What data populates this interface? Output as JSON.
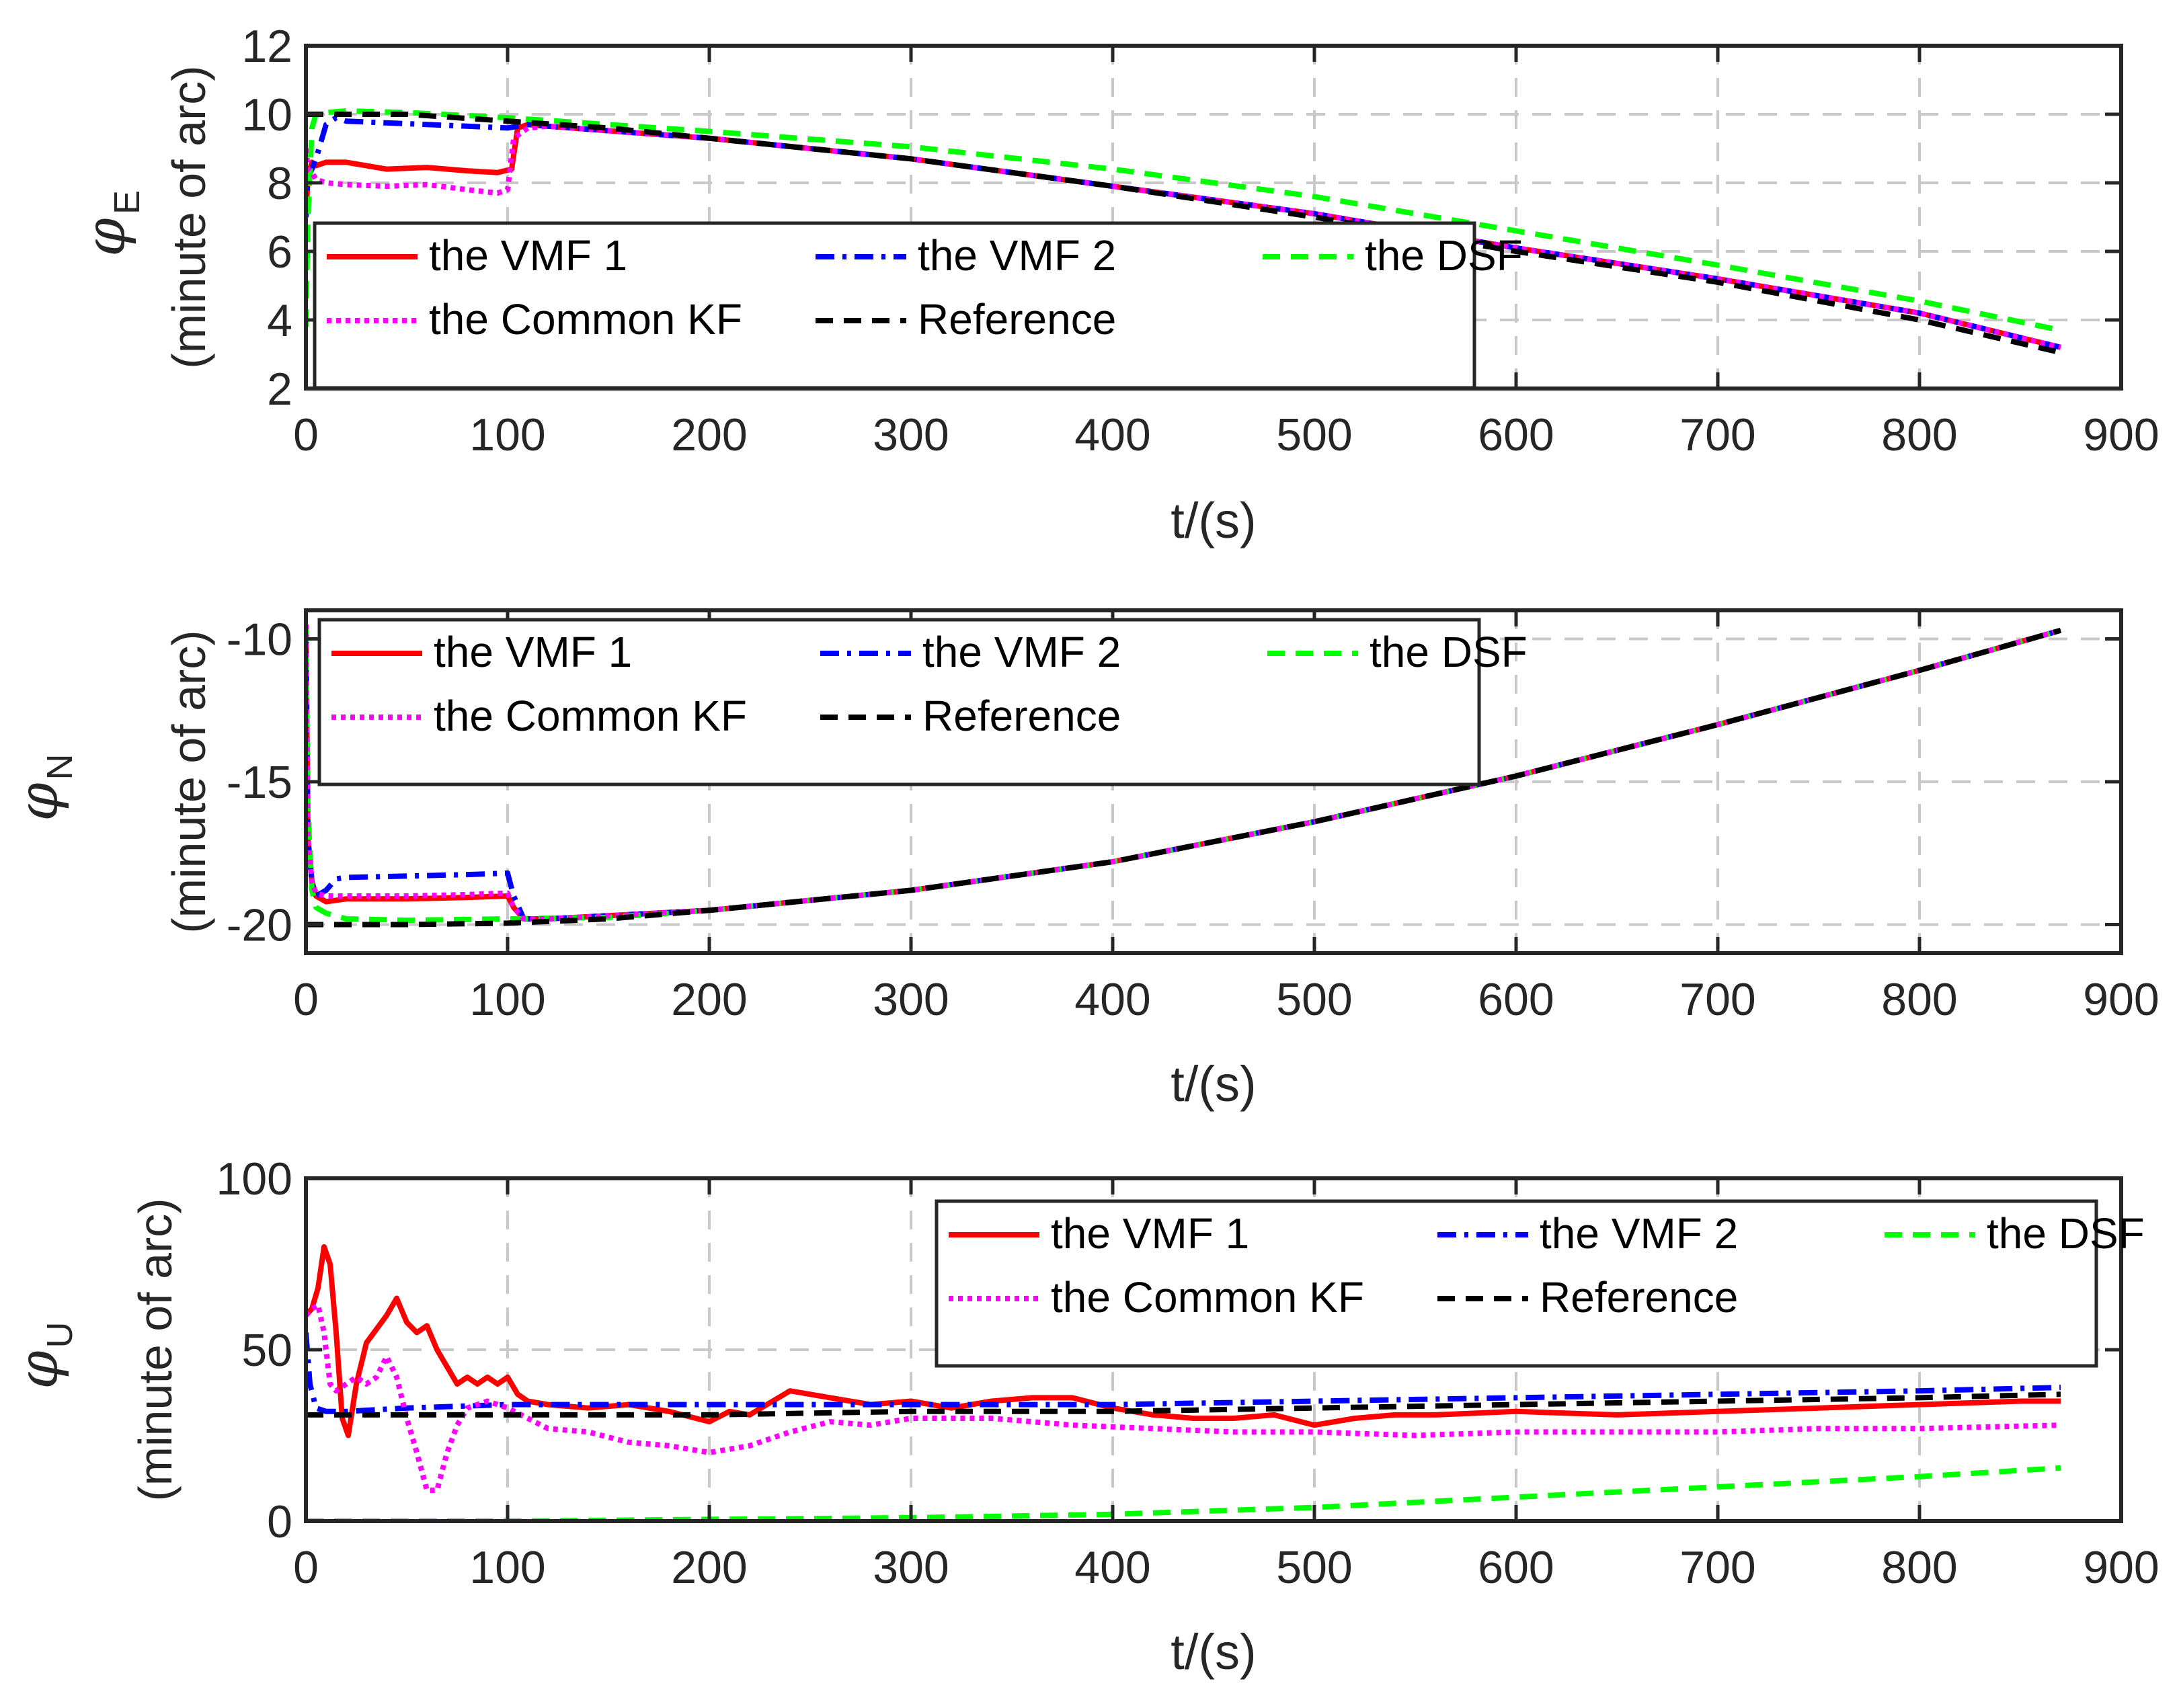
{
  "chart_data": [
    {
      "type": "line",
      "id": "E",
      "ylabel_symbol": "φ",
      "ylabel_subscript": "E",
      "ylabel_text": "(minute of arc)",
      "xlabel": "t/(s)",
      "xlim": [
        0,
        900
      ],
      "ylim": [
        2,
        12
      ],
      "xticks": [
        0,
        100,
        200,
        300,
        400,
        500,
        600,
        700,
        800,
        900
      ],
      "yticks": [
        2,
        4,
        6,
        8,
        10,
        12
      ],
      "ytick_labels": [
        "2",
        "4",
        "6",
        "8",
        "10",
        "12"
      ],
      "legend_location": "upper-left",
      "series": [
        {
          "name": "the VMF 1",
          "color": "#ff0000",
          "style": "solid",
          "x": [
            0,
            1,
            3,
            5,
            10,
            20,
            40,
            60,
            80,
            95,
            102,
            105,
            110,
            120,
            200,
            300,
            400,
            500,
            600,
            700,
            800,
            870
          ],
          "y": [
            7,
            8.2,
            8.6,
            8.5,
            8.6,
            8.6,
            8.4,
            8.45,
            8.35,
            8.3,
            8.4,
            9.6,
            9.7,
            9.65,
            9.3,
            8.7,
            7.9,
            7.1,
            6.1,
            5.2,
            4.2,
            3.2
          ]
        },
        {
          "name": "the VMF 2",
          "color": "#0000ff",
          "style": "dashdot",
          "x": [
            0,
            1,
            3,
            5,
            10,
            15,
            20,
            40,
            60,
            80,
            100,
            105,
            110,
            120,
            200,
            300,
            400,
            500,
            600,
            700,
            800,
            870
          ],
          "y": [
            7,
            8.2,
            8.4,
            8.7,
            9.7,
            9.9,
            9.8,
            9.75,
            9.7,
            9.65,
            9.6,
            9.65,
            9.7,
            9.65,
            9.3,
            8.7,
            7.9,
            7.1,
            6.1,
            5.2,
            4.2,
            3.2
          ]
        },
        {
          "name": "the DSF",
          "color": "#00ff00",
          "style": "dashed",
          "x": [
            0,
            1,
            3,
            5,
            10,
            20,
            50,
            100,
            150,
            200,
            300,
            400,
            500,
            600,
            700,
            800,
            870
          ],
          "y": [
            3.8,
            7,
            9.6,
            10,
            10.05,
            10.1,
            10.05,
            9.9,
            9.7,
            9.5,
            9.05,
            8.4,
            7.6,
            6.6,
            5.6,
            4.55,
            3.7
          ]
        },
        {
          "name": "the Common KF",
          "color": "#ff00ff",
          "style": "dotted",
          "x": [
            0,
            1,
            3,
            5,
            10,
            20,
            40,
            60,
            80,
            95,
            100,
            103,
            110,
            120,
            200,
            300,
            400,
            500,
            600,
            700,
            800,
            870
          ],
          "y": [
            9,
            8.4,
            8.3,
            8.1,
            8,
            7.95,
            7.9,
            7.95,
            7.8,
            7.7,
            7.8,
            9.3,
            9.6,
            9.65,
            9.3,
            8.7,
            7.9,
            7.1,
            6.1,
            5.2,
            4.2,
            3.2
          ]
        },
        {
          "name": "Reference",
          "color": "#000000",
          "style": "dashed",
          "x": [
            0,
            50,
            100,
            150,
            200,
            300,
            400,
            500,
            600,
            700,
            800,
            870
          ],
          "y": [
            10,
            10,
            9.8,
            9.6,
            9.3,
            8.7,
            7.9,
            7.0,
            6.0,
            5.1,
            4.0,
            3.05
          ]
        }
      ]
    },
    {
      "type": "line",
      "id": "N",
      "ylabel_symbol": "φ",
      "ylabel_subscript": "N",
      "ylabel_text": "(minute of arc)",
      "xlabel": "t/(s)",
      "xlim": [
        0,
        900
      ],
      "ylim": [
        -21,
        -9
      ],
      "xticks": [
        0,
        100,
        200,
        300,
        400,
        500,
        600,
        700,
        800,
        900
      ],
      "yticks": [
        -20,
        -15,
        -10
      ],
      "ytick_labels": [
        "-20",
        "-15",
        "-10"
      ],
      "legend_location": "upper-left",
      "series": [
        {
          "name": "the VMF 1",
          "color": "#ff0000",
          "style": "solid",
          "x": [
            0,
            1,
            3,
            5,
            10,
            20,
            50,
            80,
            100,
            103,
            108,
            120,
            200,
            300,
            400,
            500,
            600,
            700,
            800,
            870
          ],
          "y": [
            -9.5,
            -17,
            -18.5,
            -19,
            -19.2,
            -19.1,
            -19.1,
            -19.05,
            -19.0,
            -19.4,
            -19.8,
            -19.8,
            -19.5,
            -18.8,
            -17.8,
            -16.4,
            -14.8,
            -13.0,
            -11.1,
            -9.7
          ]
        },
        {
          "name": "the VMF 2",
          "color": "#0000ff",
          "style": "dashdot",
          "x": [
            0,
            1,
            3,
            5,
            10,
            15,
            20,
            50,
            80,
            100,
            103,
            108,
            120,
            200,
            300,
            400,
            500,
            600,
            700,
            800,
            870
          ],
          "y": [
            -9.5,
            -17,
            -18.5,
            -19,
            -18.8,
            -18.4,
            -18.35,
            -18.3,
            -18.25,
            -18.2,
            -19.0,
            -19.8,
            -19.8,
            -19.5,
            -18.8,
            -17.8,
            -16.4,
            -14.8,
            -13.0,
            -11.1,
            -9.7
          ]
        },
        {
          "name": "the DSF",
          "color": "#00ff00",
          "style": "dashed",
          "x": [
            0,
            1,
            3,
            5,
            10,
            20,
            50,
            100,
            150,
            200,
            300,
            400,
            500,
            600,
            700,
            800,
            870
          ],
          "y": [
            -9.5,
            -16,
            -18.8,
            -19.4,
            -19.6,
            -19.8,
            -19.85,
            -19.8,
            -19.75,
            -19.5,
            -18.8,
            -17.8,
            -16.4,
            -14.8,
            -13.0,
            -11.1,
            -9.7
          ]
        },
        {
          "name": "the Common KF",
          "color": "#ff00ff",
          "style": "dotted",
          "x": [
            0,
            1,
            3,
            5,
            10,
            20,
            50,
            80,
            100,
            103,
            108,
            120,
            200,
            300,
            400,
            500,
            600,
            700,
            800,
            870
          ],
          "y": [
            -9.5,
            -17,
            -18.5,
            -18.9,
            -19.0,
            -19.0,
            -19.0,
            -18.95,
            -18.9,
            -19.4,
            -19.8,
            -19.8,
            -19.5,
            -18.8,
            -17.8,
            -16.4,
            -14.8,
            -13.0,
            -11.1,
            -9.7
          ]
        },
        {
          "name": "Reference",
          "color": "#000000",
          "style": "dashed",
          "x": [
            0,
            50,
            100,
            150,
            200,
            300,
            400,
            500,
            600,
            700,
            800,
            870
          ],
          "y": [
            -20,
            -20,
            -19.95,
            -19.8,
            -19.5,
            -18.8,
            -17.8,
            -16.4,
            -14.8,
            -13.0,
            -11.1,
            -9.7
          ]
        }
      ]
    },
    {
      "type": "line",
      "id": "U",
      "ylabel_symbol": "φ",
      "ylabel_subscript": "U",
      "ylabel_text": "(minute of arc)",
      "xlabel": "t/(s)",
      "xlim": [
        0,
        900
      ],
      "ylim": [
        0,
        100
      ],
      "xticks": [
        0,
        100,
        200,
        300,
        400,
        500,
        600,
        700,
        800,
        900
      ],
      "yticks": [
        0,
        50,
        100
      ],
      "ytick_labels": [
        "0",
        "50",
        "100"
      ],
      "legend_location": "upper-right",
      "series": [
        {
          "name": "the VMF 1",
          "color": "#ff0000",
          "style": "solid",
          "x": [
            0,
            3,
            6,
            9,
            12,
            15,
            18,
            21,
            25,
            30,
            35,
            40,
            45,
            50,
            55,
            60,
            65,
            70,
            75,
            80,
            85,
            90,
            95,
            100,
            105,
            110,
            120,
            140,
            160,
            180,
            200,
            210,
            220,
            240,
            260,
            280,
            300,
            320,
            340,
            360,
            380,
            400,
            420,
            440,
            460,
            480,
            500,
            520,
            540,
            560,
            600,
            650,
            700,
            750,
            800,
            850,
            870
          ],
          "y": [
            60,
            62,
            68,
            80,
            75,
            55,
            30,
            25,
            40,
            52,
            56,
            60,
            65,
            58,
            55,
            57,
            50,
            45,
            40,
            42,
            40,
            42,
            40,
            42,
            37,
            35,
            34,
            33,
            34,
            32,
            29,
            32,
            31,
            38,
            36,
            34,
            35,
            33,
            35,
            36,
            36,
            33,
            31,
            30,
            30,
            31,
            28,
            30,
            31,
            31,
            32,
            31,
            32,
            33,
            34,
            35,
            35
          ]
        },
        {
          "name": "the VMF 2",
          "color": "#0000ff",
          "style": "dashdot",
          "x": [
            0,
            2,
            5,
            10,
            20,
            50,
            100,
            200,
            300,
            400,
            500,
            600,
            700,
            800,
            870
          ],
          "y": [
            55,
            40,
            33,
            32,
            32,
            33,
            34,
            34,
            34,
            34,
            35,
            36,
            37,
            38,
            39
          ]
        },
        {
          "name": "the DSF",
          "color": "#00ff00",
          "style": "dashed",
          "x": [
            0,
            100,
            200,
            300,
            400,
            500,
            600,
            700,
            800,
            870
          ],
          "y": [
            0,
            0,
            0.5,
            1,
            2,
            4,
            7,
            10,
            13,
            15.5
          ]
        },
        {
          "name": "the Common KF",
          "color": "#ff00ff",
          "style": "dotted",
          "x": [
            0,
            3,
            6,
            9,
            12,
            15,
            20,
            25,
            30,
            35,
            40,
            45,
            50,
            55,
            60,
            65,
            70,
            75,
            80,
            90,
            100,
            110,
            120,
            140,
            160,
            180,
            200,
            220,
            240,
            260,
            280,
            300,
            340,
            380,
            420,
            460,
            500,
            550,
            600,
            650,
            700,
            750,
            800,
            870
          ],
          "y": [
            60,
            62,
            63,
            55,
            40,
            38,
            40,
            42,
            40,
            42,
            48,
            42,
            30,
            20,
            9,
            9,
            20,
            28,
            33,
            35,
            33,
            30,
            27,
            26,
            23,
            22,
            20,
            22,
            26,
            29,
            28,
            30,
            30,
            28,
            27,
            26,
            26,
            25,
            26,
            26,
            26,
            27,
            27,
            28
          ]
        },
        {
          "name": "Reference",
          "color": "#000000",
          "style": "dashed",
          "x": [
            0,
            100,
            200,
            300,
            400,
            500,
            600,
            700,
            800,
            870
          ],
          "y": [
            31,
            31,
            31,
            32,
            32,
            33,
            34,
            35,
            36,
            37
          ]
        }
      ]
    }
  ]
}
